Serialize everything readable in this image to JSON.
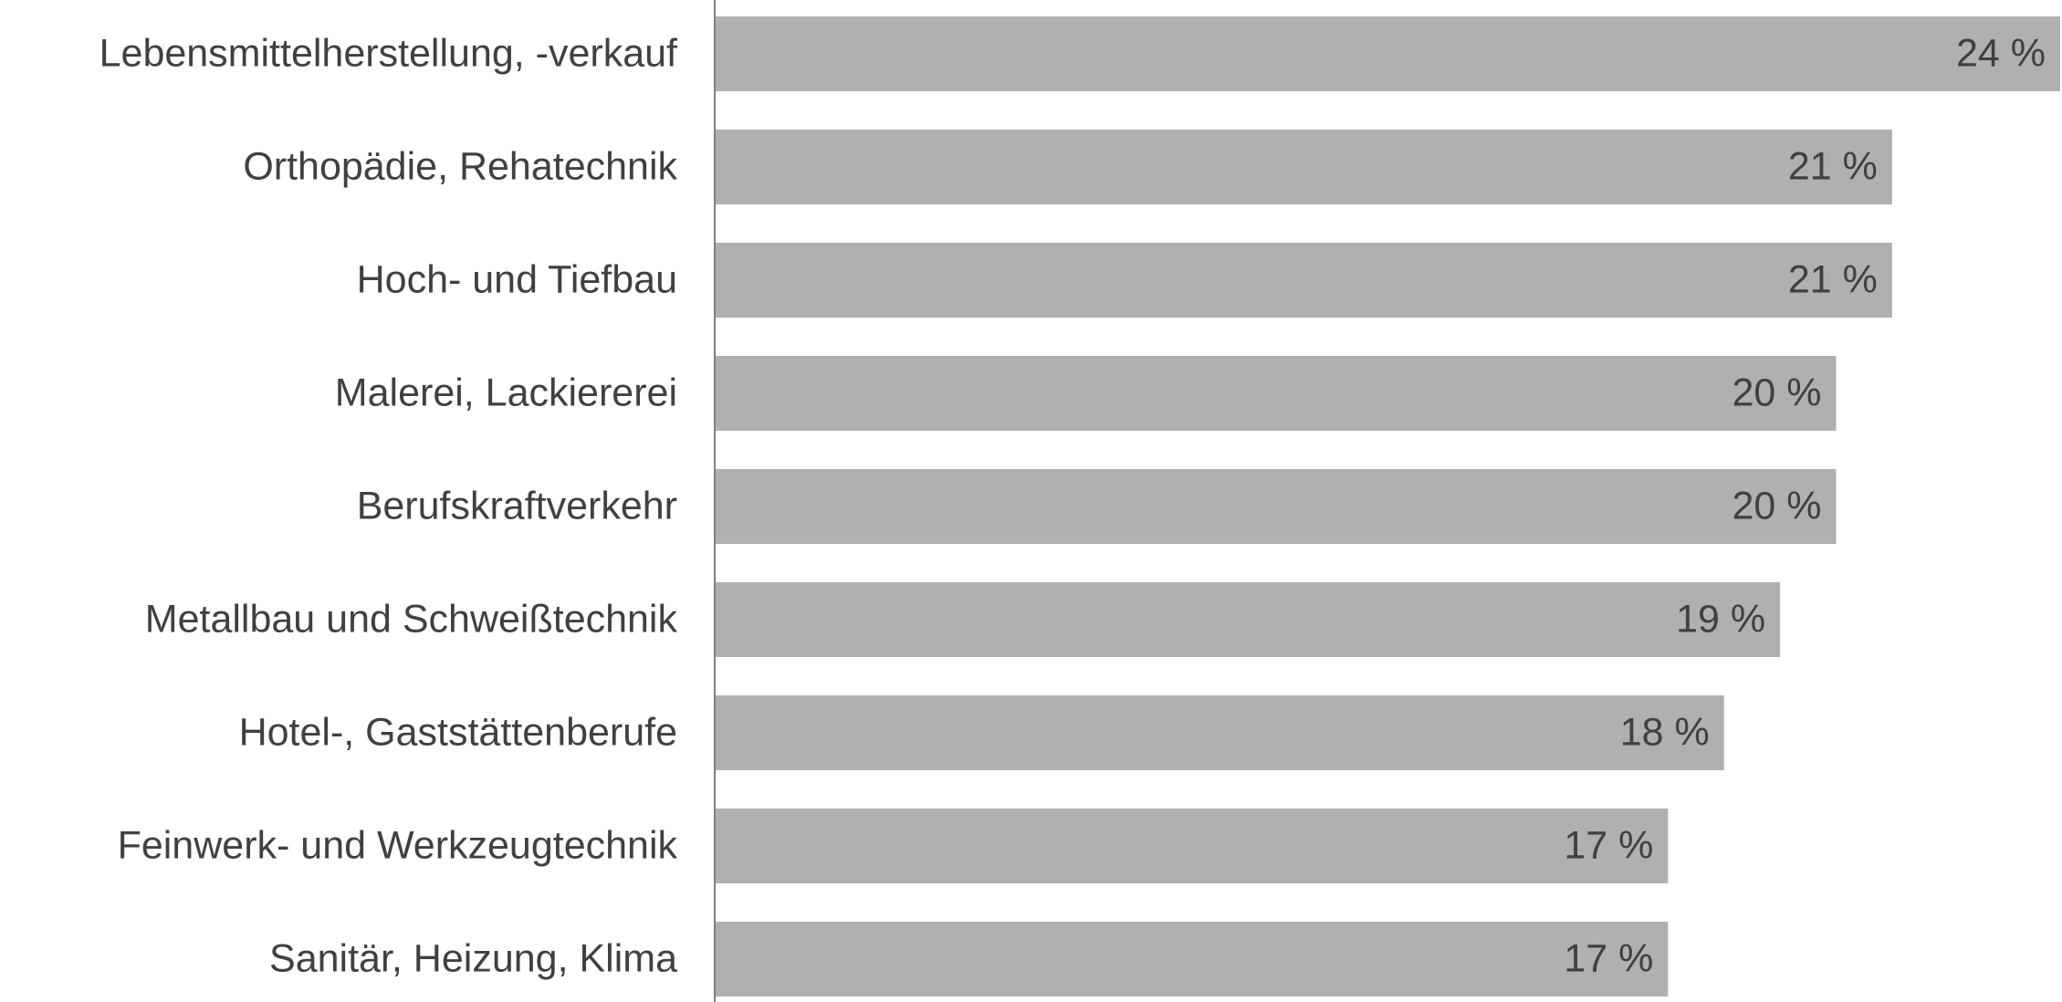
{
  "chart_data": {
    "type": "bar",
    "orientation": "horizontal",
    "categories": [
      "Lebensmittelherstellung, -verkauf",
      "Orthopädie, Rehatechnik",
      "Hoch- und Tiefbau",
      "Malerei, Lackiererei",
      "Berufskraftverkehr",
      "Metallbau und Schweißtechnik",
      "Hotel-, Gaststättenberufe",
      "Feinwerk- und Werkzeugtechnik",
      "Sanitär, Heizung, Klima"
    ],
    "values": [
      24,
      21,
      21,
      20,
      20,
      19,
      18,
      17,
      17
    ],
    "value_labels": [
      "24 %",
      "21 %",
      "21 %",
      "20 %",
      "20 %",
      "19 %",
      "18 %",
      "17 %",
      "17 %"
    ],
    "color": "#b0b0b0"
  }
}
